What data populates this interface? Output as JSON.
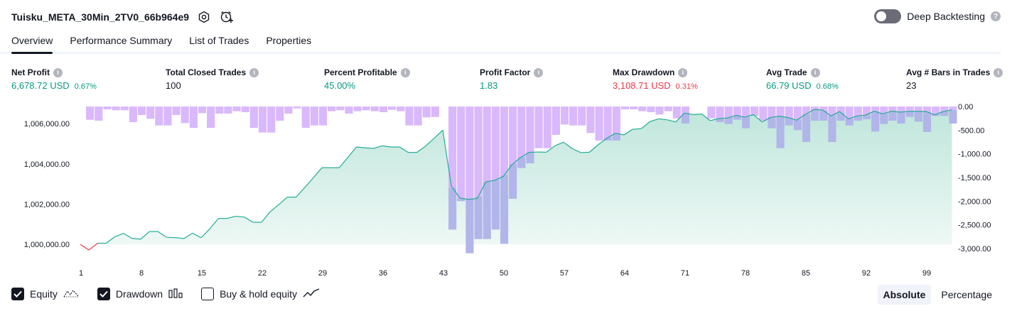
{
  "header": {
    "strategy_name": "Tuisku_META_30Min_2TV0_66b964e9",
    "deep_backtesting_label": "Deep Backtesting",
    "deep_backtesting_on": false
  },
  "tabs": [
    {
      "label": "Overview",
      "active": true
    },
    {
      "label": "Performance Summary",
      "active": false
    },
    {
      "label": "List of Trades",
      "active": false
    },
    {
      "label": "Properties",
      "active": false
    }
  ],
  "metrics": [
    {
      "label": "Net Profit",
      "value": "6,678.72 USD",
      "pct": "0.67%",
      "tone": "pos"
    },
    {
      "label": "Total Closed Trades",
      "value": "100",
      "pct": "",
      "tone": "neu"
    },
    {
      "label": "Percent Profitable",
      "value": "45.00%",
      "pct": "",
      "tone": "pos"
    },
    {
      "label": "Profit Factor",
      "value": "1.83",
      "pct": "",
      "tone": "pos"
    },
    {
      "label": "Max Drawdown",
      "value": "3,108.71 USD",
      "pct": "0.31%",
      "tone": "neg"
    },
    {
      "label": "Avg Trade",
      "value": "66.79 USD",
      "pct": "0.68%",
      "tone": "pos"
    },
    {
      "label": "Avg # Bars in Trades",
      "value": "23",
      "pct": "",
      "tone": "neu"
    }
  ],
  "legend": {
    "equity_label": "Equity",
    "equity_checked": true,
    "drawdown_label": "Drawdown",
    "drawdown_checked": true,
    "buyhold_label": "Buy & hold equity",
    "buyhold_checked": false
  },
  "mode": {
    "absolute_label": "Absolute",
    "percentage_label": "Percentage",
    "selected": "Absolute"
  },
  "colors": {
    "equity_line": "#22ab94",
    "equity_negative": "#f23645",
    "equity_fill_top": "#bfe6db",
    "equity_fill_bottom": "#eef8f5",
    "drawdown_bar": "#d9b8fb",
    "overlap_bar": "#b2b5e9",
    "text": "#131722"
  },
  "chart_data": {
    "type": "area",
    "x_ticks": [
      1,
      8,
      15,
      22,
      29,
      36,
      43,
      50,
      57,
      64,
      71,
      78,
      85,
      92,
      99
    ],
    "equity": {
      "name": "Equity",
      "axis_ticks": [
        "1,000,000.00",
        "1,002,000.00",
        "1,004,000.00",
        "1,006,000.00"
      ],
      "ylim": [
        999550,
        1006850
      ],
      "values": [
        1000000,
        999720,
        1000060,
        1000060,
        1000380,
        1000550,
        1000300,
        1000260,
        1000640,
        1000640,
        1000350,
        1000340,
        1000290,
        1000560,
        1000330,
        1000770,
        1001290,
        1001290,
        1001400,
        1001360,
        1001100,
        1001100,
        1001620,
        1001980,
        1002350,
        1002350,
        1002820,
        1003310,
        1003810,
        1003810,
        1003810,
        1004320,
        1004840,
        1004800,
        1004770,
        1004900,
        1004840,
        1004840,
        1004570,
        1004570,
        1004880,
        1005270,
        1005680,
        1002890,
        1002300,
        1002240,
        1002280,
        1003110,
        1003180,
        1003370,
        1003950,
        1004310,
        1004570,
        1004590,
        1004580,
        1004900,
        1005080,
        1004760,
        1004560,
        1004580,
        1004950,
        1005270,
        1005520,
        1005440,
        1005720,
        1005750,
        1006100,
        1006240,
        1006190,
        1006080,
        1006520,
        1006450,
        1006480,
        1006150,
        1006250,
        1006280,
        1006410,
        1006320,
        1006450,
        1006080,
        1006310,
        1006370,
        1006300,
        1006170,
        1006450,
        1006700,
        1006680,
        1006380,
        1006600,
        1006230,
        1006380,
        1006420,
        1006620,
        1006480,
        1006620,
        1006570,
        1006610,
        1006610,
        1006600,
        1006440,
        1006600,
        1006680
      ]
    },
    "drawdown": {
      "name": "Drawdown",
      "axis_ticks": [
        "0.00",
        "-500.00",
        "-1,000.00",
        "-1,500.00",
        "-2,000.00",
        "-2,500.00",
        "-3,000.00"
      ],
      "ylim": [
        -3000,
        0
      ],
      "values": [
        0,
        -280,
        -300,
        -60,
        -80,
        -80,
        -330,
        -180,
        -260,
        -400,
        -400,
        -180,
        -350,
        -450,
        -140,
        -450,
        -150,
        -150,
        -100,
        -120,
        -450,
        -550,
        -550,
        -300,
        -150,
        -40,
        -450,
        -400,
        -400,
        -100,
        -80,
        -150,
        -100,
        -80,
        -100,
        -120,
        -70,
        -100,
        -400,
        -400,
        -230,
        -220,
        0,
        -2600,
        -2000,
        -3100,
        -2800,
        -2800,
        -2600,
        -2900,
        -1950,
        -1300,
        -1200,
        -880,
        -880,
        -600,
        -380,
        -400,
        -400,
        -560,
        -720,
        -720,
        -720,
        -60,
        -60,
        -100,
        -120,
        -170,
        -100,
        -250,
        -360,
        0,
        0,
        -250,
        -330,
        -370,
        -280,
        -460,
        -200,
        -300,
        -460,
        -880,
        -400,
        -500,
        -750,
        -300,
        -300,
        -750,
        -300,
        -400,
        -300,
        -270,
        -530,
        -370,
        -300,
        -360,
        -220,
        -320,
        -540,
        -200,
        -200,
        -360
      ]
    },
    "title": "",
    "xlabel": "",
    "ylabel": "",
    "grid": false,
    "legend_position": "bottom-left"
  }
}
